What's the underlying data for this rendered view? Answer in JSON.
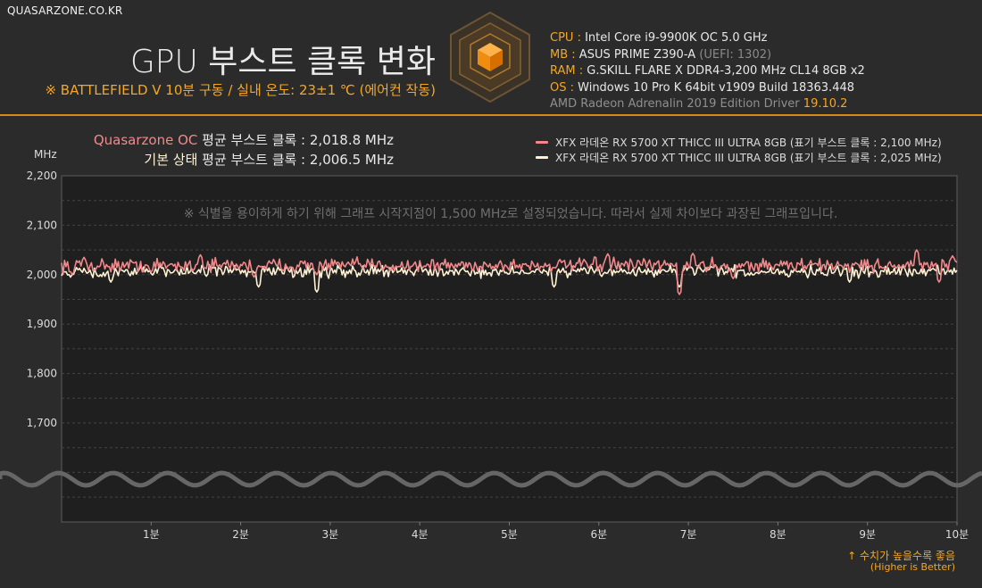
{
  "site": "QUASARZONE.CO.KR",
  "header": {
    "title": "GPU 부스트 클록 변화",
    "subtitle": "※ BATTLEFIELD V 10분 구동 / 실내 온도: 23±1 ℃ (에어컨 작동)"
  },
  "specs": {
    "cpu_k": "CPU :",
    "cpu_v": "Intel Core i9-9900K OC 5.0 GHz",
    "mb_k": "MB :",
    "mb_v": "ASUS PRIME Z390-A",
    "mb_note": "(UEFI: 1302)",
    "ram_k": "RAM :",
    "ram_v": "G.SKILL FLARE X DDR4-3,200 MHz CL14 8GB x2",
    "os_k": "OS :",
    "os_v": "Windows 10 Pro K 64bit v1909 Build 18363.448",
    "driver": "AMD Radeon Adrenalin 2019 Edition Driver",
    "driver_ver": "19.10.2"
  },
  "averages": {
    "oc_label": "Quasarzone OC",
    "oc_text": "평균 부스트 클록 : 2,018.8 MHz",
    "base_label": "기본 상태",
    "base_text": "평균 부스트 클록 : 2,006.5 MHz"
  },
  "colors": {
    "oc": "#f0878a",
    "base": "#fff1d2",
    "accent": "#f5a623",
    "plot_bg": "#1f1f1f"
  },
  "chart_data": {
    "type": "line",
    "ylabel": "MHz",
    "note": "※ 식별을 용이하게 하기 위해 그래프 시작지점이 1,500 MHz로 설정되었습니다. 따라서 실제 차이보다 과장된 그래프입니다.",
    "ylim": [
      1500,
      2200
    ],
    "yticks": [
      "2,200",
      "2,100",
      "2,000",
      "1,900",
      "1,800",
      "1,700"
    ],
    "ytick_values": [
      2200,
      2100,
      2000,
      1900,
      1800,
      1700
    ],
    "xlim": [
      0,
      10
    ],
    "xticks": [
      "1분",
      "2분",
      "3분",
      "4분",
      "5분",
      "6분",
      "7분",
      "8분",
      "9분",
      "10분"
    ],
    "grid": true,
    "axis_break": true,
    "series": [
      {
        "name": "XFX 라데온 RX 5700 XT THICC III ULTRA 8GB (표기 부스트 클록 : 2,100 MHz)",
        "mean": 2018.8,
        "min": 1960,
        "max": 2050,
        "color": "#f0878a",
        "dips": [
          [
            0.12,
            2000
          ],
          [
            1.0,
            2005
          ],
          [
            2.15,
            1995
          ],
          [
            2.85,
            2000
          ],
          [
            6.9,
            1960
          ],
          [
            7.5,
            1992
          ],
          [
            9.8,
            1985
          ]
        ],
        "peaks": [
          [
            0.25,
            2035
          ],
          [
            1.55,
            2040
          ],
          [
            6.1,
            2042
          ],
          [
            7.05,
            2043
          ],
          [
            9.55,
            2050
          ],
          [
            9.95,
            2038
          ]
        ]
      },
      {
        "name": "XFX 라데온 RX 5700 XT THICC III ULTRA 8GB (표기 부스트 클록 : 2,025 MHz)",
        "mean": 2006.5,
        "min": 1965,
        "max": 2020,
        "color": "#fff1d2",
        "dips": [
          [
            0.1,
            1995
          ],
          [
            0.55,
            1985
          ],
          [
            2.2,
            1975
          ],
          [
            2.85,
            1965
          ],
          [
            5.5,
            1975
          ],
          [
            6.9,
            1975
          ],
          [
            8.8,
            1985
          ]
        ],
        "peaks": [
          [
            1.1,
            2018
          ],
          [
            4.0,
            2020
          ],
          [
            7.3,
            2020
          ]
        ]
      }
    ]
  },
  "footer": {
    "better": "↑ 수치가 높을수록 좋음",
    "better_en": "(Higher is Better)"
  }
}
